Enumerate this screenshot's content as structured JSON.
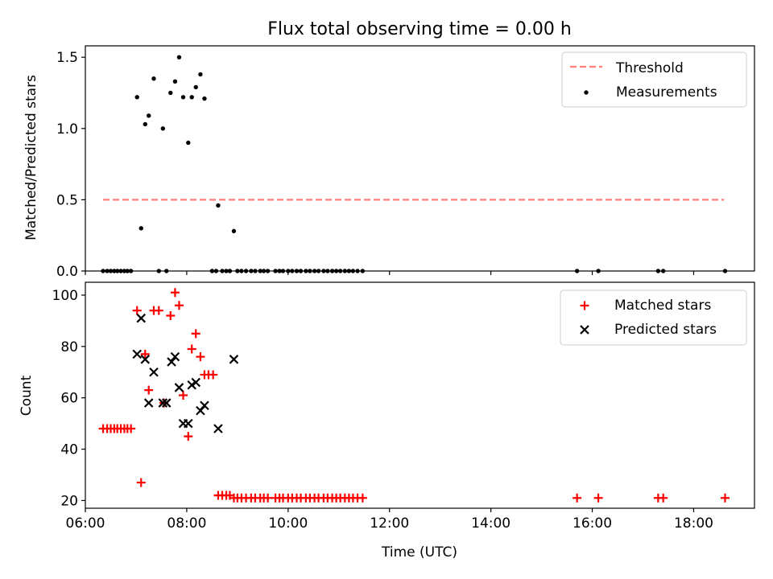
{
  "figure": {
    "title": "Flux total observing time = 0.00 h"
  },
  "chart_data": [
    {
      "type": "scatter",
      "panel": "top",
      "title": "Flux total observing time = 0.00 h",
      "xlabel": "",
      "ylabel": "Matched/Predicted stars",
      "x_axis": "time (hours UTC)",
      "xlim": [
        6.0,
        19.2
      ],
      "ylim": [
        0.0,
        1.58
      ],
      "yticks": [
        0.0,
        0.5,
        1.0,
        1.5
      ],
      "ytick_labels": [
        "0.0",
        "0.5",
        "1.0",
        "1.5"
      ],
      "xticks": [
        6,
        8,
        10,
        12,
        14,
        16,
        18
      ],
      "xtick_labels": [],
      "grid": false,
      "legend": {
        "placement": "top-right",
        "entries": [
          "Threshold",
          "Measurements"
        ]
      },
      "threshold": {
        "name": "Threshold",
        "value": 0.5,
        "x_range": [
          6.35,
          18.6
        ],
        "color": "#ff7f7f",
        "style": "dashed"
      },
      "measurements": {
        "name": "Measurements",
        "color": "#000000",
        "points": [
          [
            6.35,
            0
          ],
          [
            6.43,
            0
          ],
          [
            6.5,
            0
          ],
          [
            6.57,
            0
          ],
          [
            6.63,
            0
          ],
          [
            6.7,
            0
          ],
          [
            6.77,
            0
          ],
          [
            6.83,
            0
          ],
          [
            6.9,
            0
          ],
          [
            7.02,
            1.22
          ],
          [
            7.1,
            0.3
          ],
          [
            7.18,
            1.03
          ],
          [
            7.25,
            1.09
          ],
          [
            7.35,
            1.35
          ],
          [
            7.45,
            0
          ],
          [
            7.53,
            1.0
          ],
          [
            7.6,
            0
          ],
          [
            7.68,
            1.25
          ],
          [
            7.77,
            1.33
          ],
          [
            7.85,
            1.5
          ],
          [
            7.93,
            1.22
          ],
          [
            8.03,
            0.9
          ],
          [
            8.1,
            1.22
          ],
          [
            8.18,
            1.29
          ],
          [
            8.27,
            1.38
          ],
          [
            8.35,
            1.21
          ],
          [
            8.5,
            0
          ],
          [
            8.58,
            0
          ],
          [
            8.62,
            0.46
          ],
          [
            8.7,
            0
          ],
          [
            8.78,
            0
          ],
          [
            8.85,
            0
          ],
          [
            8.93,
            0.28
          ],
          [
            9.0,
            0
          ],
          [
            9.08,
            0
          ],
          [
            9.17,
            0
          ],
          [
            9.27,
            0
          ],
          [
            9.35,
            0
          ],
          [
            9.45,
            0
          ],
          [
            9.52,
            0
          ],
          [
            9.6,
            0
          ],
          [
            9.75,
            0
          ],
          [
            9.83,
            0
          ],
          [
            9.9,
            0
          ],
          [
            10.0,
            0
          ],
          [
            10.08,
            0
          ],
          [
            10.17,
            0
          ],
          [
            10.25,
            0
          ],
          [
            10.35,
            0
          ],
          [
            10.43,
            0
          ],
          [
            10.52,
            0
          ],
          [
            10.6,
            0
          ],
          [
            10.7,
            0
          ],
          [
            10.78,
            0
          ],
          [
            10.87,
            0
          ],
          [
            10.95,
            0
          ],
          [
            11.03,
            0
          ],
          [
            11.12,
            0
          ],
          [
            11.2,
            0
          ],
          [
            11.28,
            0
          ],
          [
            11.37,
            0
          ],
          [
            11.47,
            0
          ],
          [
            15.7,
            0
          ],
          [
            16.12,
            0
          ],
          [
            17.3,
            0
          ],
          [
            17.4,
            0
          ],
          [
            18.62,
            0
          ]
        ]
      }
    },
    {
      "type": "scatter",
      "panel": "bottom",
      "xlabel": "Time (UTC)",
      "ylabel": "Count",
      "x_axis": "time (hours UTC)",
      "xlim": [
        6.0,
        19.2
      ],
      "ylim": [
        17,
        105
      ],
      "yticks": [
        20,
        40,
        60,
        80,
        100
      ],
      "ytick_labels": [
        "20",
        "40",
        "60",
        "80",
        "100"
      ],
      "xticks": [
        6,
        8,
        10,
        12,
        14,
        16,
        18
      ],
      "xtick_labels": [
        "06:00",
        "08:00",
        "10:00",
        "12:00",
        "14:00",
        "16:00",
        "18:00"
      ],
      "grid": false,
      "legend": {
        "placement": "top-right",
        "entries": [
          "Matched stars",
          "Predicted stars"
        ]
      },
      "series": [
        {
          "name": "Matched stars",
          "marker": "plus",
          "color": "#ff0000",
          "points": [
            [
              6.35,
              48
            ],
            [
              6.43,
              48
            ],
            [
              6.5,
              48
            ],
            [
              6.57,
              48
            ],
            [
              6.63,
              48
            ],
            [
              6.7,
              48
            ],
            [
              6.77,
              48
            ],
            [
              6.83,
              48
            ],
            [
              6.9,
              48
            ],
            [
              7.02,
              94
            ],
            [
              7.1,
              27
            ],
            [
              7.18,
              77
            ],
            [
              7.25,
              63
            ],
            [
              7.35,
              94
            ],
            [
              7.45,
              94
            ],
            [
              7.55,
              58
            ],
            [
              7.68,
              92
            ],
            [
              7.77,
              101
            ],
            [
              7.85,
              96
            ],
            [
              7.93,
              61
            ],
            [
              8.03,
              45
            ],
            [
              8.1,
              79
            ],
            [
              8.18,
              85
            ],
            [
              8.27,
              76
            ],
            [
              8.35,
              69
            ],
            [
              8.43,
              69
            ],
            [
              8.52,
              69
            ],
            [
              8.62,
              22
            ],
            [
              8.7,
              22
            ],
            [
              8.78,
              22
            ],
            [
              8.85,
              22
            ],
            [
              8.93,
              21
            ],
            [
              9.0,
              21
            ],
            [
              9.08,
              21
            ],
            [
              9.17,
              21
            ],
            [
              9.27,
              21
            ],
            [
              9.35,
              21
            ],
            [
              9.45,
              21
            ],
            [
              9.52,
              21
            ],
            [
              9.6,
              21
            ],
            [
              9.75,
              21
            ],
            [
              9.83,
              21
            ],
            [
              9.9,
              21
            ],
            [
              10.0,
              21
            ],
            [
              10.08,
              21
            ],
            [
              10.17,
              21
            ],
            [
              10.25,
              21
            ],
            [
              10.35,
              21
            ],
            [
              10.43,
              21
            ],
            [
              10.52,
              21
            ],
            [
              10.6,
              21
            ],
            [
              10.7,
              21
            ],
            [
              10.78,
              21
            ],
            [
              10.87,
              21
            ],
            [
              10.95,
              21
            ],
            [
              11.03,
              21
            ],
            [
              11.12,
              21
            ],
            [
              11.2,
              21
            ],
            [
              11.28,
              21
            ],
            [
              11.37,
              21
            ],
            [
              11.47,
              21
            ],
            [
              15.7,
              21
            ],
            [
              16.12,
              21
            ],
            [
              17.3,
              21
            ],
            [
              17.4,
              21
            ],
            [
              18.62,
              21
            ]
          ]
        },
        {
          "name": "Predicted stars",
          "marker": "x",
          "color": "#000000",
          "points": [
            [
              7.02,
              77
            ],
            [
              7.1,
              91
            ],
            [
              7.18,
              75
            ],
            [
              7.25,
              58
            ],
            [
              7.35,
              70
            ],
            [
              7.53,
              58
            ],
            [
              7.6,
              58
            ],
            [
              7.7,
              74
            ],
            [
              7.77,
              76
            ],
            [
              7.85,
              64
            ],
            [
              7.93,
              50
            ],
            [
              8.03,
              50
            ],
            [
              8.1,
              65
            ],
            [
              8.18,
              66
            ],
            [
              8.27,
              55
            ],
            [
              8.35,
              57
            ],
            [
              8.62,
              48
            ],
            [
              8.93,
              75
            ]
          ]
        }
      ]
    }
  ]
}
